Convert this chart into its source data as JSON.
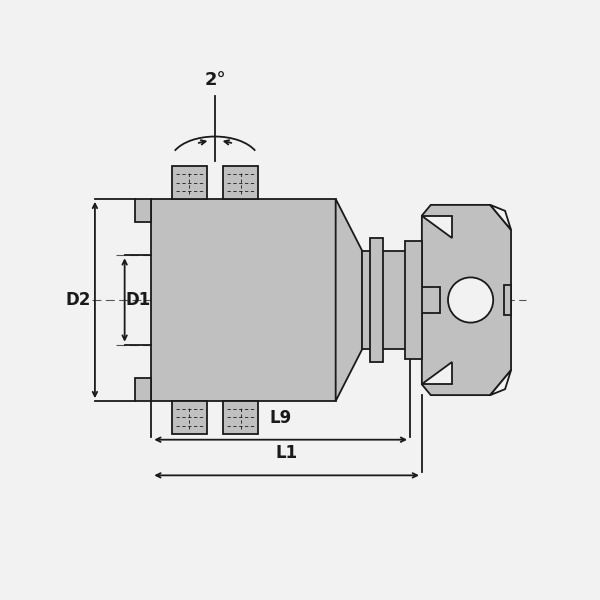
{
  "bg_color": "#f2f2f2",
  "line_color": "#1a1a1a",
  "fill_color": "#c0c0c0",
  "fill_light": "#d0d0d0",
  "dash_color": "#555555",
  "labels": {
    "D1": "D1",
    "D2": "D2",
    "L1": "L1",
    "L9": "L9",
    "angle": "2°"
  },
  "xlim": [
    0,
    10
  ],
  "ylim": [
    0,
    10
  ]
}
